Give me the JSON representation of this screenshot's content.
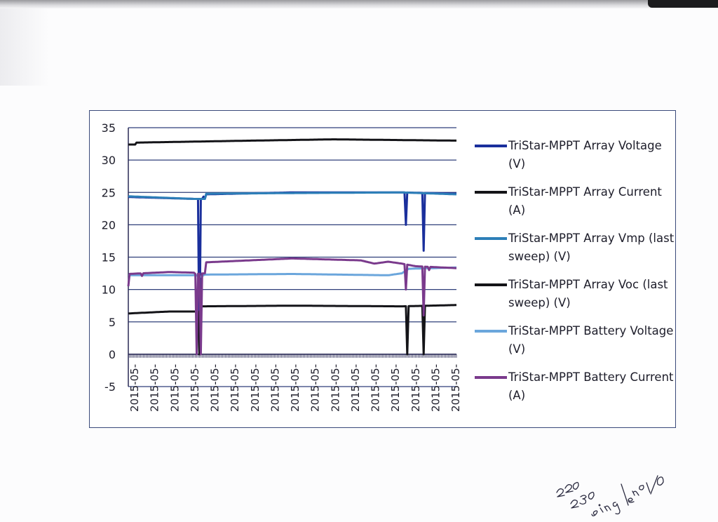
{
  "colors": {
    "grid": "#2f3f7a",
    "axis": "#2a2a55",
    "frame": "#3a4a7a",
    "text": "#1d1d2a"
  },
  "chart_data": {
    "type": "line",
    "yticks": [
      35,
      30,
      25,
      20,
      15,
      10,
      5,
      0,
      -5
    ],
    "ylim": [
      -5,
      35
    ],
    "grid": true,
    "legend_position": "right",
    "x_tick_label": "2015-05-",
    "x_tick_count": 17,
    "n_points": 241,
    "series": [
      {
        "name": "TriStar-MPPT Array Voltage (V)",
        "color": "#1a2f9c",
        "width": 3,
        "base": [
          [
            0,
            24.3
          ],
          [
            48,
            24.0
          ],
          [
            54,
            24.0
          ],
          [
            56,
            24.7
          ],
          [
            120,
            25.0
          ],
          [
            200,
            25.0
          ],
          [
            240,
            24.8
          ]
        ],
        "events": [
          [
            52,
            0.0
          ],
          [
            54,
            24.0
          ],
          [
            56,
            24.0
          ],
          [
            203,
            20.0
          ],
          [
            216,
            16.0
          ]
        ]
      },
      {
        "name": "TriStar-MPPT Array Current (A)",
        "color": "#141418",
        "width": 3,
        "base": [
          [
            0,
            32.4
          ],
          [
            5,
            32.4
          ],
          [
            6,
            32.7
          ],
          [
            90,
            33.0
          ],
          [
            150,
            33.2
          ],
          [
            240,
            33.0
          ]
        ],
        "events": []
      },
      {
        "name": "TriStar-MPPT Array Vmp (last sweep) (V)",
        "color": "#2d7fb8",
        "width": 3,
        "base": [
          [
            0,
            24.4
          ],
          [
            48,
            24.0
          ],
          [
            56,
            24.0
          ],
          [
            57,
            24.8
          ],
          [
            120,
            24.9
          ],
          [
            200,
            25.0
          ],
          [
            240,
            24.7
          ]
        ],
        "events": []
      },
      {
        "name": "TriStar-MPPT Array Voc (last sweep) (V)",
        "color": "#141418",
        "width": 3,
        "base": [
          [
            0,
            6.3
          ],
          [
            30,
            6.6
          ],
          [
            52,
            6.6
          ],
          [
            53,
            7.4
          ],
          [
            120,
            7.5
          ],
          [
            200,
            7.4
          ],
          [
            240,
            7.6
          ]
        ],
        "events": [
          [
            52,
            0.0
          ],
          [
            204,
            0.0
          ],
          [
            216,
            0.0
          ]
        ]
      },
      {
        "name": "TriStar-MPPT Battery Voltage (V)",
        "color": "#6ba6dc",
        "width": 3,
        "base": [
          [
            0,
            12.2
          ],
          [
            50,
            12.2
          ],
          [
            52,
            11.9
          ],
          [
            56,
            12.3
          ],
          [
            120,
            12.4
          ],
          [
            190,
            12.2
          ],
          [
            200,
            12.5
          ],
          [
            205,
            13.2
          ],
          [
            240,
            13.4
          ]
        ],
        "events": []
      },
      {
        "name": "TriStar-MPPT Battery Current (A)",
        "color": "#7a3a8c",
        "width": 3,
        "base": [
          [
            0,
            12.4
          ],
          [
            30,
            12.7
          ],
          [
            48,
            12.6
          ],
          [
            49,
            12.4
          ],
          [
            56,
            12.5
          ],
          [
            57,
            14.2
          ],
          [
            120,
            14.8
          ],
          [
            170,
            14.5
          ],
          [
            180,
            14.0
          ],
          [
            190,
            14.3
          ],
          [
            200,
            14.0
          ],
          [
            210,
            13.6
          ],
          [
            240,
            13.3
          ]
        ],
        "events": [
          [
            0,
            10.5
          ],
          [
            10,
            12.1
          ],
          [
            50,
            0.0
          ],
          [
            53,
            0.0
          ],
          [
            203,
            10.0
          ],
          [
            216,
            6.0
          ],
          [
            220,
            13.0
          ]
        ]
      }
    ]
  },
  "handwritten_note": "220 230 single no I/O"
}
